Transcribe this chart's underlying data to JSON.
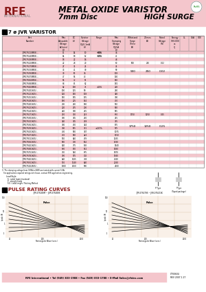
{
  "title_main": "METAL OXIDE VARISTOR",
  "title_sub": "7mm Disc",
  "title_right": "HIGH SURGE",
  "header_bg": "#f4c6cc",
  "section_title": "7 ø JVR VARISTOR",
  "footer_text": "RFE International • Tel (949) 833-1988 • Fax (949) 833-1788 • E-Mail Sales@rfeinc.com",
  "footer_right": "C700604\nREV 2007.1.27",
  "pulse_title": "PULSE RATING CURVES",
  "pulse_left_label": "JVR-07S180M ~ JVR-07S480K",
  "pulse_right_label": "JVR-07S470K ~ JVR-07S201K",
  "col_headers": [
    "Part\nNumber",
    "Maximum\nAllowable\nVoltage\nAC(rms)\n(V)",
    "DC\n(V)",
    "Varistor\nVoltage\nV@0.1mA\n(V)\nRange",
    "Maximum\nClamping\nVoltage\nV@5A\n(V)",
    "Withstanding\nSurge\nCurrent\n1Time\n(A)",
    "2Times\n(A)",
    "Rated\nVoltage\n(W)",
    "Energy\n10/1000\nus\n(J)",
    "UL",
    "CSA",
    "VDE"
  ],
  "table_rows": [
    [
      "JVR07S110M05/...",
      "11",
      "14",
      "10",
      "+30%",
      "36",
      "",
      "",
      "",
      "",
      "",
      "",
      ""
    ],
    [
      "JVR07S140M05/...",
      "14",
      "18",
      "12",
      "+15%",
      "41",
      "",
      "",
      "",
      "",
      "",
      "",
      ""
    ],
    [
      "JVR07S180M05/...",
      "18",
      "22",
      "16",
      "",
      "48",
      "",
      "",
      "",
      "",
      "",
      "",
      ""
    ],
    [
      "JVR07S220M05/...",
      "22",
      "28",
      "20",
      "",
      "60",
      "500",
      "250",
      "0.02",
      "",
      "",
      "",
      ""
    ],
    [
      "JVR07S270M05/...",
      "27",
      "35",
      "25",
      "",
      "74",
      "",
      "",
      "",
      "",
      "",
      "",
      ""
    ],
    [
      "JVR07S330M05/...",
      "33",
      "41",
      "30",
      "",
      "90",
      "",
      "",
      "",
      "",
      "",
      "",
      ""
    ],
    [
      "JVR07S390M05/...",
      "39",
      "50",
      "36",
      "",
      "108",
      "",
      "",
      "",
      "",
      "",
      "",
      ""
    ],
    [
      "JVR07S470M05/...",
      "47",
      "56",
      "43",
      "",
      "130",
      "",
      "",
      "",
      "",
      "",
      "",
      ""
    ],
    [
      "JVR07S560M05/...",
      "56",
      "72",
      "51",
      "",
      "150",
      "",
      "",
      "",
      "",
      "",
      "",
      ""
    ],
    [
      "JVR07S680M05/...",
      "68",
      "85",
      "62",
      "",
      "182",
      "",
      "",
      "",
      "",
      "",
      "",
      ""
    ],
    [
      "JVR07S820M05/...",
      "82",
      "100",
      "75",
      "±10%",
      "220",
      "",
      "",
      "",
      "",
      "",
      "",
      ""
    ],
    [
      "JVR07S101K05/...",
      "100",
      "125",
      "90",
      "",
      "260",
      "",
      "",
      "",
      "",
      "",
      "",
      ""
    ],
    [
      "JVR07S121K05/...",
      "120",
      "150",
      "108",
      "",
      "320",
      "",
      "",
      "",
      "",
      "",
      "",
      ""
    ],
    [
      "JVR07S151K05/...",
      "150",
      "185",
      "135",
      "",
      "390",
      "",
      "",
      "",
      "",
      "",
      "",
      ""
    ],
    [
      "JVR07S181K05/...",
      "180",
      "225",
      "162",
      "",
      "470",
      "",
      "",
      "",
      "",
      "",
      "",
      ""
    ],
    [
      "JVR07S201K05/...",
      "200",
      "250",
      "180",
      "",
      "510",
      "",
      "",
      "",
      "",
      "",
      "",
      ""
    ],
    [
      "JVR07S221K05/...",
      "220",
      "275",
      "200",
      "",
      "560",
      "",
      "",
      "",
      "",
      "",
      "",
      ""
    ],
    [
      "JVR07S241K05/...",
      "240",
      "300",
      "215",
      "",
      "595",
      "",
      "",
      "",
      "",
      "",
      "",
      ""
    ],
    [
      "JVR07S271K05/...",
      "270",
      "350",
      "243",
      "",
      "670",
      "1750",
      "1250",
      "0.25",
      "",
      "",
      "",
      ""
    ],
    [
      "JVR07S301K05/...",
      "300",
      "385",
      "270",
      "",
      "745",
      "",
      "",
      "",
      "",
      "",
      "",
      ""
    ],
    [
      "JVR07S321K05/...",
      "320",
      "385",
      "288",
      "",
      "795",
      "",
      "",
      "",
      "",
      "",
      "",
      ""
    ],
    [
      "JVR07S361K05/...",
      "360",
      "450",
      "324",
      "",
      "895",
      "",
      "",
      "",
      "",
      "",
      "",
      ""
    ],
    [
      "JVR07S391K05/...",
      "390",
      "505",
      "351",
      "",
      "975",
      "",
      "",
      "",
      "",
      "",
      "",
      ""
    ],
    [
      "JVR07S431K05/...",
      "430",
      "560",
      "387",
      "",
      "1075",
      "",
      "",
      "",
      "",
      "",
      "",
      ""
    ],
    [
      "JVR07S471K05/...",
      "470",
      "560",
      "423",
      "",
      "1150",
      "",
      "",
      "",
      "",
      "",
      "",
      ""
    ],
    [
      "JVR07S511K05/...",
      "510",
      "640",
      "459",
      "",
      "1265",
      "",
      "",
      "",
      "",
      "",
      "",
      ""
    ],
    [
      "JVR07S561K05/...",
      "560",
      "700",
      "504",
      "",
      "1390",
      "",
      "",
      "",
      "",
      "",
      "",
      ""
    ],
    [
      "JVR07S621K05/...",
      "620",
      "775",
      "558",
      "",
      "1540",
      "",
      "",
      "",
      "",
      "",
      "",
      ""
    ],
    [
      "JVR07S681K05/...",
      "680",
      "850",
      "612",
      "",
      "1690",
      "",
      "",
      "",
      "",
      "",
      "",
      ""
    ],
    [
      "JVR07S751K05/...",
      "750",
      "940",
      "675",
      "",
      "1870",
      "",
      "",
      "",
      "",
      "",
      "",
      ""
    ],
    [
      "JVR07S781K05/...",
      "780",
      "975",
      "702",
      "",
      "1940",
      "",
      "",
      "",
      "",
      "",
      "",
      ""
    ],
    [
      "JVR07S821K05/...",
      "820",
      "1025",
      "738",
      "",
      "2040",
      "",
      "",
      "",
      "",
      "",
      "",
      ""
    ],
    [
      "JVR07S911K05/...",
      "910",
      "1140",
      "820",
      "",
      "2260",
      "",
      "",
      "",
      "",
      "",
      "",
      ""
    ],
    [
      "JVR07S102K05/...",
      "1000",
      "1250",
      "900",
      "",
      "2500",
      "",
      "",
      "",
      "",
      "",
      "",
      ""
    ]
  ],
  "row_colors": [
    "#f4c6cc",
    "#ffffff"
  ],
  "note1": "1) The clamping voltage from 18VA to 680V are tested with current 5.0A.",
  "note2": "   For application required ratings not shown, contact RFE application engineering.",
  "note3": "Lead Style:\n  S : radial leads (standard)\n  P : straight leads\n  S.S : Lead Length / Packing Method",
  "bg_color": "#ffffff",
  "rfe_color": "#8b1a1a",
  "pink_color": "#f4c6cc"
}
